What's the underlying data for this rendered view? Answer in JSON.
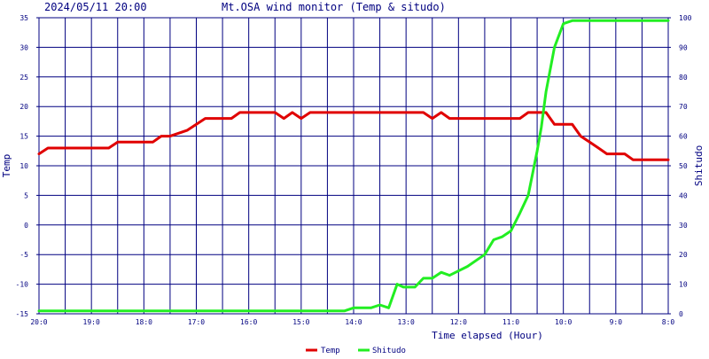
{
  "chart_data": {
    "type": "line",
    "timestamp": "2024/05/11 20:00",
    "title": "Mt.OSA wind monitor (Temp & situdo)",
    "xlabel": "Time elapsed (Hour)",
    "ylabel": "Temp",
    "y2label": "Shitudo",
    "x_ticks": [
      "20:0",
      "19:0",
      "18:0",
      "17:0",
      "16:0",
      "15:0",
      "14:0",
      "13:0",
      "12:0",
      "11:0",
      "10:0",
      "9:0",
      "8:0"
    ],
    "x_range": [
      0,
      12
    ],
    "ylim": [
      -15,
      35
    ],
    "y_ticks": [
      35,
      30,
      25,
      20,
      15,
      10,
      5,
      0,
      -5,
      -10,
      -15
    ],
    "y2lim": [
      0,
      100
    ],
    "y2_ticks": [
      100,
      90,
      80,
      70,
      60,
      50,
      40,
      30,
      20,
      10,
      0
    ],
    "grid": true,
    "legend_position": "bottom-center",
    "colors": {
      "plot_background": "#ffffff",
      "grid": "#000080",
      "axis_text": "#000080",
      "temp": "#e00000",
      "shitudo": "#22ee22"
    },
    "series": [
      {
        "name": "Temp",
        "axis": "left",
        "color": "#e00000",
        "x": [
          0,
          0.17,
          0.33,
          0.5,
          1.33,
          1.5,
          1.67,
          2.17,
          2.33,
          2.5,
          2.83,
          3.0,
          3.17,
          3.33,
          3.67,
          3.83,
          4.0,
          4.17,
          4.5,
          4.67,
          4.83,
          5.0,
          5.17,
          5.33,
          5.5,
          6.0,
          7.0,
          7.33,
          7.5,
          7.67,
          7.83,
          8.0,
          8.5,
          9.0,
          9.17,
          9.33,
          9.5,
          9.67,
          9.83,
          10.0,
          10.17,
          10.33,
          10.5,
          10.67,
          10.83,
          11.0,
          11.17,
          11.33,
          12.0
        ],
        "values": [
          12,
          13,
          13,
          13,
          13,
          14,
          14,
          14,
          15,
          15,
          16,
          17,
          18,
          18,
          18,
          19,
          19,
          19,
          19,
          18,
          19,
          18,
          19,
          19,
          19,
          19,
          19,
          19,
          18,
          19,
          18,
          18,
          18,
          18,
          18,
          19,
          19,
          19,
          17,
          17,
          17,
          15,
          14,
          13,
          12,
          12,
          12,
          11,
          11
        ]
      },
      {
        "name": "Shitudo",
        "axis": "right",
        "color": "#22ee22",
        "x": [
          0,
          3.0,
          5.0,
          5.83,
          6.0,
          6.33,
          6.5,
          6.67,
          6.83,
          6.95,
          7.17,
          7.33,
          7.5,
          7.67,
          7.83,
          8.17,
          8.5,
          8.67,
          8.83,
          9.0,
          9.17,
          9.33,
          9.5,
          9.58,
          9.67,
          9.83,
          10.0,
          10.17,
          10.5,
          12.0
        ],
        "values": [
          1,
          1,
          1,
          1,
          2,
          2,
          3,
          2,
          10,
          9,
          9,
          12,
          12,
          14,
          13,
          16,
          20,
          25,
          26,
          28,
          34,
          40,
          55,
          63,
          75,
          90,
          98,
          99,
          99,
          99
        ]
      }
    ]
  }
}
